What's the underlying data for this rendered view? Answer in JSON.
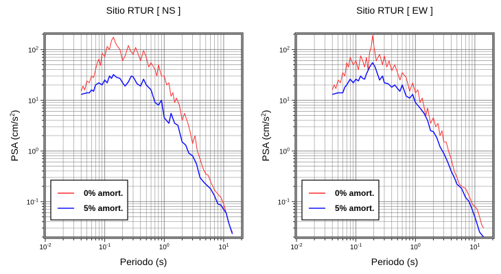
{
  "chart_data": [
    {
      "type": "line",
      "title": "Sitio RTUR [ NS ]",
      "xlabel": "Periodo (s)",
      "ylabel_main": "PSA (cm/s",
      "ylabel_sup": "2",
      "ylabel_close": ")",
      "xscale": "log",
      "yscale": "log",
      "xlim": [
        0.01,
        20
      ],
      "ylim": [
        0.02,
        200
      ],
      "grid": true,
      "legend_position": "bottom-left",
      "x_ticks": [
        {
          "base": "10",
          "exp": "-2"
        },
        {
          "base": "10",
          "exp": "-1"
        },
        {
          "base": "10",
          "exp": "0"
        },
        {
          "base": "10",
          "exp": "1"
        }
      ],
      "y_ticks": [
        {
          "base": "10",
          "exp": "-1"
        },
        {
          "base": "10",
          "exp": "0"
        },
        {
          "base": "10",
          "exp": "1"
        },
        {
          "base": "10",
          "exp": "2"
        }
      ],
      "series": [
        {
          "name": "0% amort.",
          "color": "#ff2a2a",
          "points": [
            [
              0.04,
              15
            ],
            [
              0.043,
              19
            ],
            [
              0.046,
              16
            ],
            [
              0.05,
              24
            ],
            [
              0.055,
              22
            ],
            [
              0.06,
              30
            ],
            [
              0.065,
              28
            ],
            [
              0.07,
              40
            ],
            [
              0.075,
              55
            ],
            [
              0.08,
              65
            ],
            [
              0.085,
              48
            ],
            [
              0.09,
              85
            ],
            [
              0.1,
              72
            ],
            [
              0.11,
              115
            ],
            [
              0.12,
              100
            ],
            [
              0.13,
              150
            ],
            [
              0.14,
              175
            ],
            [
              0.15,
              140
            ],
            [
              0.16,
              120
            ],
            [
              0.18,
              100
            ],
            [
              0.2,
              60
            ],
            [
              0.22,
              75
            ],
            [
              0.25,
              120
            ],
            [
              0.27,
              95
            ],
            [
              0.3,
              80
            ],
            [
              0.33,
              110
            ],
            [
              0.36,
              85
            ],
            [
              0.4,
              60
            ],
            [
              0.45,
              95
            ],
            [
              0.5,
              70
            ],
            [
              0.55,
              45
            ],
            [
              0.6,
              55
            ],
            [
              0.7,
              40
            ],
            [
              0.75,
              30
            ],
            [
              0.8,
              50
            ],
            [
              0.9,
              30
            ],
            [
              1.0,
              30
            ],
            [
              1.1,
              20
            ],
            [
              1.2,
              22
            ],
            [
              1.3,
              12
            ],
            [
              1.4,
              14
            ],
            [
              1.5,
              9
            ],
            [
              1.6,
              11
            ],
            [
              1.8,
              8
            ],
            [
              2.0,
              4
            ],
            [
              2.2,
              5.5
            ],
            [
              2.5,
              3.5
            ],
            [
              2.7,
              2.5
            ],
            [
              3.0,
              1.4
            ],
            [
              3.3,
              2
            ],
            [
              3.6,
              1
            ],
            [
              4.0,
              0.7
            ],
            [
              4.5,
              0.45
            ],
            [
              5.0,
              0.35
            ],
            [
              5.5,
              0.33
            ],
            [
              6.0,
              0.25
            ],
            [
              7.0,
              0.17
            ],
            [
              8.0,
              0.14
            ],
            [
              9.0,
              0.12
            ],
            [
              10.0,
              0.09
            ],
            [
              11.0,
              0.06
            ],
            [
              12.0,
              0.04
            ],
            [
              13.0,
              0.03
            ],
            [
              14.0,
              0.025
            ]
          ]
        },
        {
          "name": "5% amort.",
          "color": "#1010ff",
          "points": [
            [
              0.04,
              13
            ],
            [
              0.05,
              14
            ],
            [
              0.055,
              14
            ],
            [
              0.06,
              16
            ],
            [
              0.065,
              15
            ],
            [
              0.07,
              20
            ],
            [
              0.08,
              22
            ],
            [
              0.09,
              20
            ],
            [
              0.1,
              25
            ],
            [
              0.11,
              22
            ],
            [
              0.12,
              30
            ],
            [
              0.13,
              27
            ],
            [
              0.14,
              32
            ],
            [
              0.16,
              28
            ],
            [
              0.18,
              27
            ],
            [
              0.2,
              22
            ],
            [
              0.22,
              19
            ],
            [
              0.25,
              23
            ],
            [
              0.28,
              30
            ],
            [
              0.3,
              29
            ],
            [
              0.35,
              21
            ],
            [
              0.4,
              19
            ],
            [
              0.45,
              26
            ],
            [
              0.5,
              20
            ],
            [
              0.6,
              16
            ],
            [
              0.7,
              9
            ],
            [
              0.8,
              8
            ],
            [
              0.9,
              10
            ],
            [
              1.0,
              4.5
            ],
            [
              1.2,
              3.5
            ],
            [
              1.3,
              5.5
            ],
            [
              1.5,
              3.5
            ],
            [
              1.7,
              3.2
            ],
            [
              2.0,
              1.5
            ],
            [
              2.3,
              1.3
            ],
            [
              2.6,
              0.9
            ],
            [
              3.0,
              0.8
            ],
            [
              3.5,
              0.55
            ],
            [
              4.0,
              0.3
            ],
            [
              4.5,
              0.25
            ],
            [
              5.0,
              0.22
            ],
            [
              6.0,
              0.18
            ],
            [
              7.0,
              0.13
            ],
            [
              8.0,
              0.09
            ],
            [
              9.0,
              0.085
            ],
            [
              10.0,
              0.07
            ],
            [
              11.0,
              0.06
            ],
            [
              12.0,
              0.04
            ],
            [
              13.0,
              0.03
            ],
            [
              14.0,
              0.023
            ]
          ]
        }
      ]
    },
    {
      "type": "line",
      "title": "Sitio RTUR [ EW ]",
      "xlabel": "Periodo (s)",
      "ylabel_main": "PSA (cm/s",
      "ylabel_sup": "2",
      "ylabel_close": ")",
      "xscale": "log",
      "yscale": "log",
      "xlim": [
        0.01,
        20
      ],
      "ylim": [
        0.02,
        200
      ],
      "grid": true,
      "legend_position": "bottom-left",
      "x_ticks": [
        {
          "base": "10",
          "exp": "-2"
        },
        {
          "base": "10",
          "exp": "-1"
        },
        {
          "base": "10",
          "exp": "0"
        },
        {
          "base": "10",
          "exp": "1"
        }
      ],
      "y_ticks": [
        {
          "base": "10",
          "exp": "-1"
        },
        {
          "base": "10",
          "exp": "0"
        },
        {
          "base": "10",
          "exp": "1"
        },
        {
          "base": "10",
          "exp": "2"
        }
      ],
      "series": [
        {
          "name": "0% amort.",
          "color": "#ff2a2a",
          "points": [
            [
              0.04,
              16
            ],
            [
              0.043,
              20
            ],
            [
              0.046,
              17
            ],
            [
              0.05,
              25
            ],
            [
              0.055,
              22
            ],
            [
              0.06,
              35
            ],
            [
              0.065,
              30
            ],
            [
              0.07,
              55
            ],
            [
              0.075,
              45
            ],
            [
              0.08,
              70
            ],
            [
              0.09,
              50
            ],
            [
              0.1,
              60
            ],
            [
              0.11,
              40
            ],
            [
              0.12,
              75
            ],
            [
              0.13,
              60
            ],
            [
              0.14,
              45
            ],
            [
              0.15,
              70
            ],
            [
              0.16,
              40
            ],
            [
              0.17,
              90
            ],
            [
              0.18,
              110
            ],
            [
              0.19,
              190
            ],
            [
              0.2,
              120
            ],
            [
              0.22,
              60
            ],
            [
              0.25,
              80
            ],
            [
              0.28,
              50
            ],
            [
              0.3,
              75
            ],
            [
              0.33,
              45
            ],
            [
              0.36,
              60
            ],
            [
              0.4,
              38
            ],
            [
              0.45,
              50
            ],
            [
              0.5,
              35
            ],
            [
              0.55,
              25
            ],
            [
              0.6,
              35
            ],
            [
              0.7,
              28
            ],
            [
              0.8,
              15
            ],
            [
              0.9,
              22
            ],
            [
              1.0,
              14
            ],
            [
              1.1,
              16
            ],
            [
              1.2,
              9
            ],
            [
              1.3,
              11
            ],
            [
              1.5,
              5
            ],
            [
              1.6,
              7
            ],
            [
              1.8,
              3.5
            ],
            [
              2.0,
              4.5
            ],
            [
              2.2,
              3
            ],
            [
              2.4,
              3.5
            ],
            [
              2.6,
              2
            ],
            [
              2.8,
              2.5
            ],
            [
              3.0,
              1.5
            ],
            [
              3.3,
              1.5
            ],
            [
              3.6,
              1
            ],
            [
              4.0,
              0.7
            ],
            [
              4.5,
              0.4
            ],
            [
              5.0,
              0.3
            ],
            [
              5.5,
              0.22
            ],
            [
              6.0,
              0.2
            ],
            [
              7.0,
              0.18
            ],
            [
              8.0,
              0.13
            ],
            [
              9.0,
              0.09
            ],
            [
              10.0,
              0.08
            ],
            [
              11.0,
              0.07
            ],
            [
              12.0,
              0.05
            ],
            [
              13.0,
              0.035
            ],
            [
              14.0,
              0.03
            ]
          ]
        },
        {
          "name": "5% amort.",
          "color": "#1010ff",
          "points": [
            [
              0.04,
              13
            ],
            [
              0.05,
              14
            ],
            [
              0.06,
              14
            ],
            [
              0.065,
              18
            ],
            [
              0.07,
              20
            ],
            [
              0.08,
              26
            ],
            [
              0.09,
              22
            ],
            [
              0.1,
              26
            ],
            [
              0.11,
              24
            ],
            [
              0.12,
              30
            ],
            [
              0.13,
              27
            ],
            [
              0.14,
              26
            ],
            [
              0.15,
              33
            ],
            [
              0.17,
              45
            ],
            [
              0.19,
              55
            ],
            [
              0.21,
              45
            ],
            [
              0.23,
              33
            ],
            [
              0.25,
              25
            ],
            [
              0.28,
              30
            ],
            [
              0.3,
              22
            ],
            [
              0.35,
              21
            ],
            [
              0.4,
              18
            ],
            [
              0.45,
              20
            ],
            [
              0.5,
              17
            ],
            [
              0.55,
              15
            ],
            [
              0.6,
              20
            ],
            [
              0.7,
              12
            ],
            [
              0.8,
              11
            ],
            [
              0.9,
              13
            ],
            [
              1.0,
              9
            ],
            [
              1.2,
              7
            ],
            [
              1.4,
              5.5
            ],
            [
              1.6,
              4
            ],
            [
              1.8,
              2.5
            ],
            [
              2.0,
              2.4
            ],
            [
              2.3,
              1.8
            ],
            [
              2.6,
              1.2
            ],
            [
              3.0,
              0.9
            ],
            [
              3.5,
              0.6
            ],
            [
              4.0,
              0.4
            ],
            [
              4.5,
              0.3
            ],
            [
              5.0,
              0.22
            ],
            [
              5.5,
              0.2
            ],
            [
              6.0,
              0.18
            ],
            [
              7.0,
              0.12
            ],
            [
              8.0,
              0.1
            ],
            [
              9.0,
              0.07
            ],
            [
              10.0,
              0.05
            ],
            [
              11.0,
              0.035
            ],
            [
              12.0,
              0.025
            ],
            [
              14.0,
              0.02
            ]
          ]
        }
      ]
    }
  ]
}
